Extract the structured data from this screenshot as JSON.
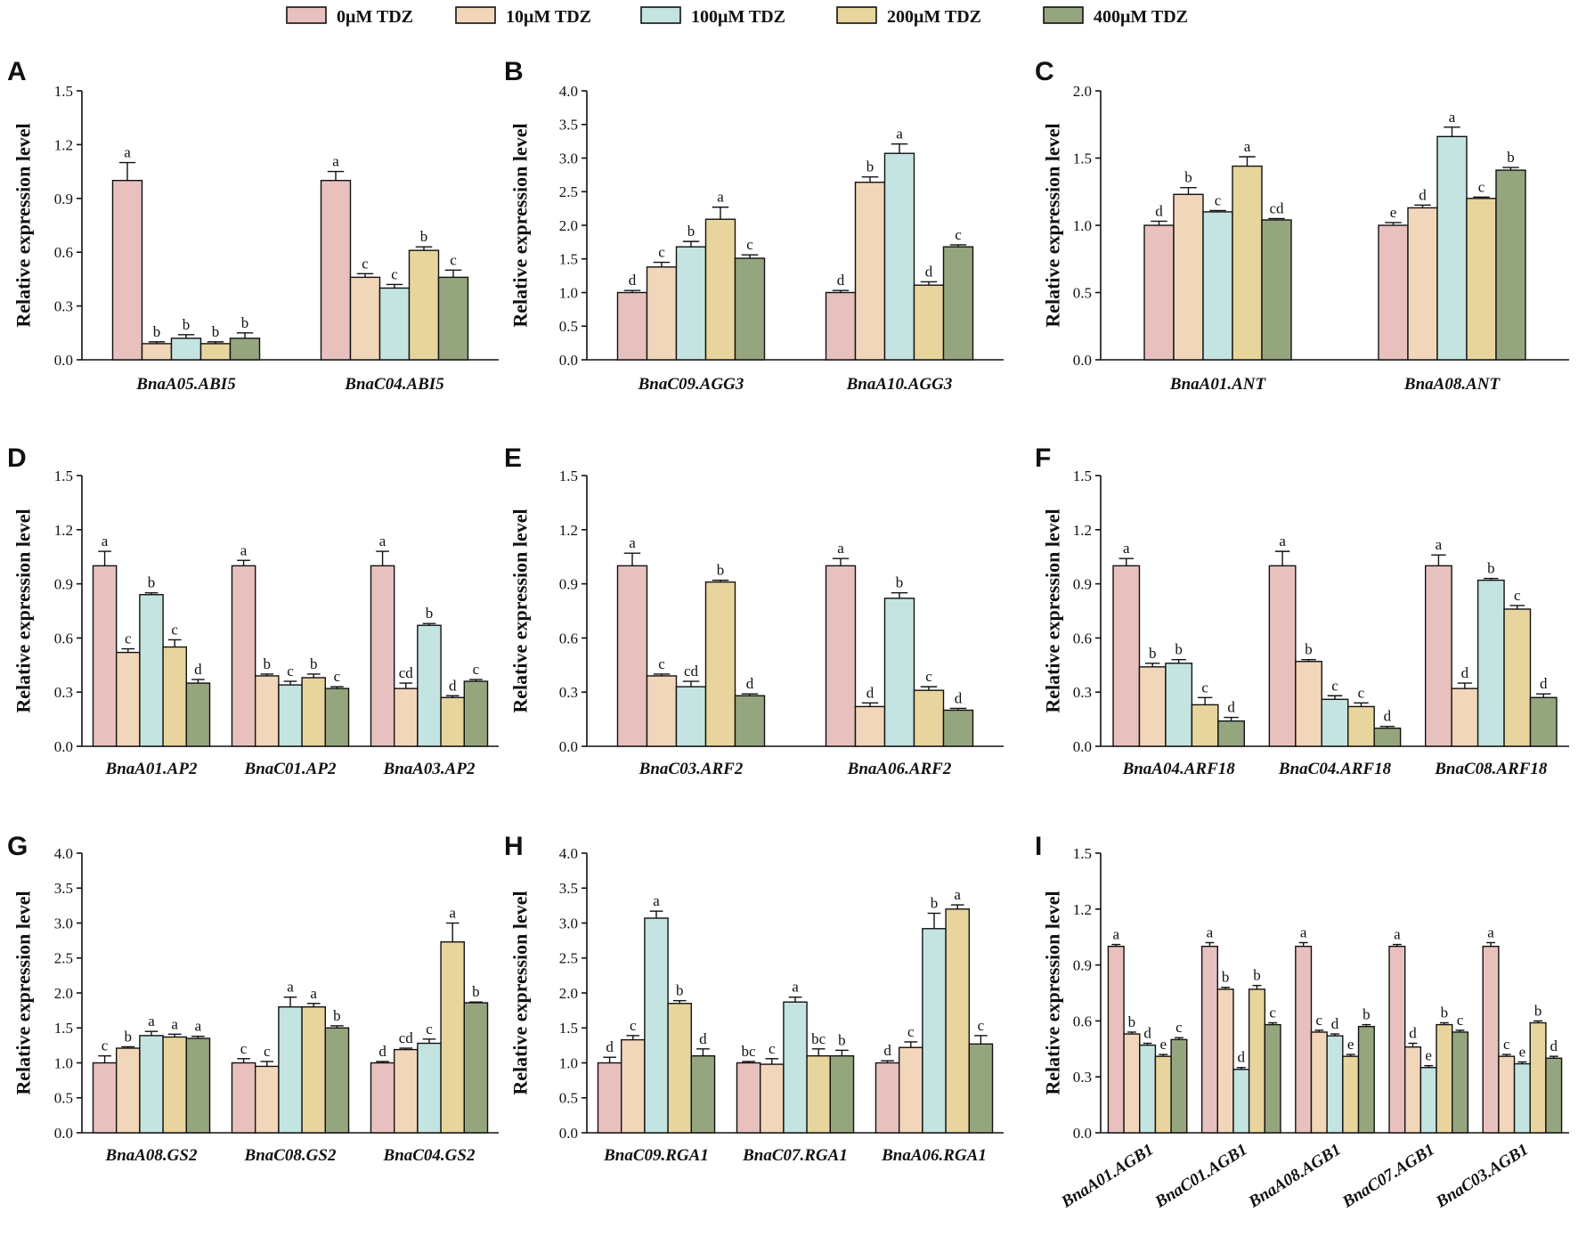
{
  "legend": [
    {
      "label": "0μM TDZ",
      "color": "#E8C1BE"
    },
    {
      "label": "10μM TDZ",
      "color": "#F2D6BA"
    },
    {
      "label": "100μM TDZ",
      "color": "#C4E4E1"
    },
    {
      "label": "200μM TDZ",
      "color": "#E8D59D"
    },
    {
      "label": "400μM TDZ",
      "color": "#95A67F"
    }
  ],
  "chart_data": [
    {
      "panel": "A",
      "type": "bar",
      "ylabel": "Relative expression level",
      "ylim": [
        0,
        1.5
      ],
      "yticks": [
        "0.0",
        "0.3",
        "0.6",
        "0.9",
        "1.2",
        "1.5"
      ],
      "categories": [
        "BnaA05.ABI5",
        "BnaC04.ABI5"
      ],
      "values": [
        [
          1.0,
          0.09,
          0.12,
          0.09,
          0.12
        ],
        [
          1.0,
          0.46,
          0.4,
          0.61,
          0.46
        ]
      ],
      "errors": [
        [
          0.1,
          0.01,
          0.02,
          0.01,
          0.03
        ],
        [
          0.05,
          0.02,
          0.02,
          0.02,
          0.04
        ]
      ],
      "letters": [
        [
          "a",
          "b",
          "b",
          "b",
          "b"
        ],
        [
          "a",
          "c",
          "c",
          "b",
          "c"
        ]
      ]
    },
    {
      "panel": "B",
      "type": "bar",
      "ylabel": "Relative expression level",
      "ylim": [
        0,
        4.0
      ],
      "yticks": [
        "0.0",
        "0.5",
        "1.0",
        "1.5",
        "2.0",
        "2.5",
        "3.0",
        "3.5",
        "4.0"
      ],
      "categories": [
        "BnaC09.AGG3",
        "BnaA10.AGG3"
      ],
      "values": [
        [
          1.0,
          1.38,
          1.68,
          2.09,
          1.51
        ],
        [
          1.0,
          2.64,
          3.07,
          1.11,
          1.68
        ]
      ],
      "errors": [
        [
          0.03,
          0.07,
          0.08,
          0.18,
          0.05
        ],
        [
          0.03,
          0.08,
          0.14,
          0.05,
          0.03
        ]
      ],
      "letters": [
        [
          "d",
          "c",
          "b",
          "a",
          "c"
        ],
        [
          "d",
          "b",
          "a",
          "d",
          "c"
        ]
      ]
    },
    {
      "panel": "C",
      "type": "bar",
      "ylabel": "Relative expression level",
      "ylim": [
        0,
        2.0
      ],
      "yticks": [
        "0.0",
        "0.5",
        "1.0",
        "1.5",
        "2.0"
      ],
      "categories": [
        "BnaA01.ANT",
        "BnaA08.ANT"
      ],
      "values": [
        [
          1.0,
          1.23,
          1.1,
          1.44,
          1.04
        ],
        [
          1.0,
          1.13,
          1.66,
          1.2,
          1.41
        ]
      ],
      "errors": [
        [
          0.03,
          0.05,
          0.01,
          0.07,
          0.01
        ],
        [
          0.02,
          0.02,
          0.07,
          0.01,
          0.02
        ]
      ],
      "letters": [
        [
          "d",
          "b",
          "c",
          "a",
          "cd"
        ],
        [
          "e",
          "d",
          "a",
          "c",
          "b"
        ]
      ]
    },
    {
      "panel": "D",
      "type": "bar",
      "ylabel": "Relative expression level",
      "ylim": [
        0,
        1.5
      ],
      "yticks": [
        "0.0",
        "0.3",
        "0.6",
        "0.9",
        "1.2",
        "1.5"
      ],
      "categories": [
        "BnaA01.AP2",
        "BnaC01.AP2",
        "BnaA03.AP2"
      ],
      "values": [
        [
          1.0,
          0.52,
          0.84,
          0.55,
          0.35
        ],
        [
          1.0,
          0.39,
          0.34,
          0.38,
          0.32
        ],
        [
          1.0,
          0.32,
          0.67,
          0.27,
          0.36
        ]
      ],
      "errors": [
        [
          0.08,
          0.02,
          0.01,
          0.04,
          0.02
        ],
        [
          0.03,
          0.01,
          0.02,
          0.02,
          0.01
        ],
        [
          0.08,
          0.03,
          0.01,
          0.01,
          0.01
        ]
      ],
      "letters": [
        [
          "a",
          "c",
          "b",
          "c",
          "d"
        ],
        [
          "a",
          "b",
          "c",
          "b",
          "c"
        ],
        [
          "a",
          "cd",
          "b",
          "d",
          "c"
        ]
      ]
    },
    {
      "panel": "E",
      "type": "bar",
      "ylabel": "Relative expression level",
      "ylim": [
        0,
        1.5
      ],
      "yticks": [
        "0.0",
        "0.3",
        "0.6",
        "0.9",
        "1.2",
        "1.5"
      ],
      "categories": [
        "BnaC03.ARF2",
        "BnaA06.ARF2"
      ],
      "values": [
        [
          1.0,
          0.39,
          0.33,
          0.91,
          0.28
        ],
        [
          1.0,
          0.22,
          0.82,
          0.31,
          0.2
        ]
      ],
      "errors": [
        [
          0.07,
          0.01,
          0.03,
          0.01,
          0.01
        ],
        [
          0.04,
          0.02,
          0.03,
          0.02,
          0.01
        ]
      ],
      "letters": [
        [
          "a",
          "c",
          "cd",
          "b",
          "d"
        ],
        [
          "a",
          "d",
          "b",
          "c",
          "d"
        ]
      ]
    },
    {
      "panel": "F",
      "type": "bar",
      "ylabel": "Relative expression level",
      "ylim": [
        0,
        1.5
      ],
      "yticks": [
        "0.0",
        "0.3",
        "0.6",
        "0.9",
        "1.2",
        "1.5"
      ],
      "categories": [
        "BnaA04.ARF18",
        "BnaC04.ARF18",
        "BnaC08.ARF18"
      ],
      "values": [
        [
          1.0,
          0.44,
          0.46,
          0.23,
          0.14
        ],
        [
          1.0,
          0.47,
          0.26,
          0.22,
          0.1
        ],
        [
          1.0,
          0.32,
          0.92,
          0.76,
          0.27
        ]
      ],
      "errors": [
        [
          0.04,
          0.02,
          0.02,
          0.04,
          0.02
        ],
        [
          0.08,
          0.01,
          0.02,
          0.02,
          0.01
        ],
        [
          0.06,
          0.03,
          0.01,
          0.02,
          0.02
        ]
      ],
      "letters": [
        [
          "a",
          "b",
          "b",
          "c",
          "d"
        ],
        [
          "a",
          "b",
          "c",
          "c",
          "d"
        ],
        [
          "a",
          "d",
          "b",
          "c",
          "d"
        ]
      ]
    },
    {
      "panel": "G",
      "type": "bar",
      "ylabel": "Relative expression level",
      "ylim": [
        0,
        4.0
      ],
      "yticks": [
        "0.0",
        "0.5",
        "1.0",
        "1.5",
        "2.0",
        "2.5",
        "3.0",
        "3.5",
        "4.0"
      ],
      "categories": [
        "BnaA08.GS2",
        "BnaC08.GS2",
        "BnaC04.GS2"
      ],
      "values": [
        [
          1.0,
          1.21,
          1.39,
          1.37,
          1.35
        ],
        [
          1.0,
          0.95,
          1.8,
          1.8,
          1.5
        ],
        [
          1.0,
          1.19,
          1.28,
          2.73,
          1.86
        ]
      ],
      "errors": [
        [
          0.1,
          0.02,
          0.06,
          0.04,
          0.03
        ],
        [
          0.06,
          0.07,
          0.14,
          0.05,
          0.03
        ],
        [
          0.02,
          0.02,
          0.06,
          0.27,
          0.01
        ]
      ],
      "letters": [
        [
          "c",
          "b",
          "a",
          "a",
          "a"
        ],
        [
          "c",
          "c",
          "a",
          "a",
          "b"
        ],
        [
          "d",
          "cd",
          "c",
          "a",
          "b"
        ]
      ]
    },
    {
      "panel": "H",
      "type": "bar",
      "ylabel": "Relative expression level",
      "ylim": [
        0,
        4.0
      ],
      "yticks": [
        "0.0",
        "0.5",
        "1.0",
        "1.5",
        "2.0",
        "2.5",
        "3.0",
        "3.5",
        "4.0"
      ],
      "categories": [
        "BnaC09.RGA1",
        "BnaC07.RGA1",
        "BnaA06.RGA1"
      ],
      "values": [
        [
          1.0,
          1.33,
          3.07,
          1.85,
          1.1
        ],
        [
          1.0,
          0.98,
          1.87,
          1.1,
          1.1
        ],
        [
          1.0,
          1.22,
          2.92,
          3.2,
          1.27
        ]
      ],
      "errors": [
        [
          0.08,
          0.06,
          0.1,
          0.04,
          0.1
        ],
        [
          0.02,
          0.08,
          0.07,
          0.1,
          0.08
        ],
        [
          0.03,
          0.08,
          0.22,
          0.06,
          0.12
        ]
      ],
      "letters": [
        [
          "d",
          "c",
          "a",
          "b",
          "d"
        ],
        [
          "bc",
          "c",
          "a",
          "bc",
          "b"
        ],
        [
          "d",
          "c",
          "b",
          "a",
          "c"
        ]
      ]
    },
    {
      "panel": "I",
      "type": "bar",
      "ylabel": "Relative expression level",
      "ylim": [
        0,
        1.5
      ],
      "yticks": [
        "0.0",
        "0.3",
        "0.6",
        "0.9",
        "1.2",
        "1.5"
      ],
      "categories": [
        "BnaA01.AGB1",
        "BnaC01.AGB1",
        "BnaA08.AGB1",
        "BnaC07.AGB1",
        "BnaC03.AGB1"
      ],
      "values": [
        [
          1.0,
          0.53,
          0.47,
          0.41,
          0.5
        ],
        [
          1.0,
          0.77,
          0.34,
          0.77,
          0.58
        ],
        [
          1.0,
          0.54,
          0.52,
          0.41,
          0.57
        ],
        [
          1.0,
          0.46,
          0.35,
          0.58,
          0.54
        ],
        [
          1.0,
          0.41,
          0.37,
          0.59,
          0.4
        ]
      ],
      "errors": [
        [
          0.01,
          0.01,
          0.01,
          0.01,
          0.01
        ],
        [
          0.02,
          0.01,
          0.01,
          0.02,
          0.01
        ],
        [
          0.02,
          0.01,
          0.01,
          0.01,
          0.01
        ],
        [
          0.01,
          0.02,
          0.01,
          0.01,
          0.01
        ],
        [
          0.02,
          0.01,
          0.01,
          0.01,
          0.01
        ]
      ],
      "letters": [
        [
          "a",
          "b",
          "d",
          "e",
          "c"
        ],
        [
          "a",
          "b",
          "d",
          "b",
          "c"
        ],
        [
          "a",
          "c",
          "d",
          "e",
          "b"
        ],
        [
          "a",
          "d",
          "e",
          "b",
          "c"
        ],
        [
          "a",
          "c",
          "e",
          "b",
          "d"
        ]
      ]
    }
  ]
}
